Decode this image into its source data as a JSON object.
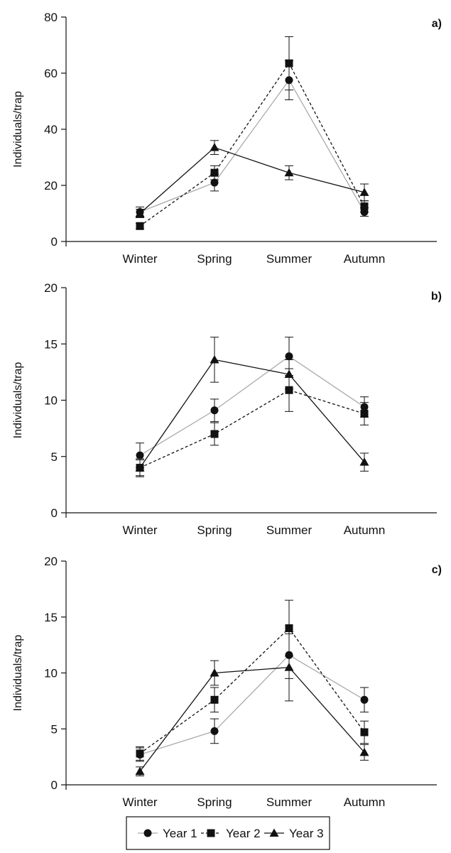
{
  "chart_data": [
    {
      "type": "line",
      "panel_label": "a)",
      "ylabel": "Individuals/trap",
      "categories": [
        "Winter",
        "Spring",
        "Summer",
        "Autumn"
      ],
      "ylim": [
        0,
        80
      ],
      "yticks": [
        0,
        20,
        40,
        60,
        80
      ],
      "series": [
        {
          "name": "Year 1",
          "marker": "circle",
          "line": "solid",
          "color": "#aaaaaa",
          "values": [
            10.5,
            21,
            57.5,
            10.5
          ],
          "errors": [
            1.8,
            3.0,
            7.0,
            1.5
          ]
        },
        {
          "name": "Year 2",
          "marker": "square",
          "line": "dashed",
          "color": "#111111",
          "values": [
            5.5,
            24.5,
            63.5,
            12.5
          ],
          "errors": [
            1.0,
            2.5,
            9.5,
            2.0
          ]
        },
        {
          "name": "Year 3",
          "marker": "triangle",
          "line": "solid",
          "color": "#111111",
          "values": [
            10,
            33.5,
            24.5,
            17.5
          ],
          "errors": [
            1.5,
            2.5,
            2.5,
            3.0
          ]
        }
      ]
    },
    {
      "type": "line",
      "panel_label": "b)",
      "ylabel": "Individuals/trap",
      "categories": [
        "Winter",
        "Spring",
        "Summer",
        "Autumn"
      ],
      "ylim": [
        0,
        20
      ],
      "yticks": [
        0,
        5,
        10,
        15,
        20
      ],
      "series": [
        {
          "name": "Year 1",
          "marker": "circle",
          "line": "solid",
          "color": "#aaaaaa",
          "values": [
            5.1,
            9.1,
            13.9,
            9.4
          ],
          "errors": [
            1.1,
            1.0,
            1.7,
            0.9
          ]
        },
        {
          "name": "Year 2",
          "marker": "square",
          "line": "dashed",
          "color": "#111111",
          "values": [
            4.0,
            7.0,
            10.9,
            8.8
          ],
          "errors": [
            0.7,
            1.0,
            1.9,
            1.0
          ]
        },
        {
          "name": "Year 3",
          "marker": "triangle",
          "line": "solid",
          "color": "#111111",
          "values": [
            4.0,
            13.6,
            12.3,
            4.5
          ],
          "errors": [
            0.8,
            2.0,
            1.3,
            0.8
          ]
        }
      ]
    },
    {
      "type": "line",
      "panel_label": "c)",
      "ylabel": "Individuals/trap",
      "categories": [
        "Winter",
        "Spring",
        "Summer",
        "Autumn"
      ],
      "ylim": [
        0,
        20
      ],
      "yticks": [
        0,
        5,
        10,
        15,
        20
      ],
      "series": [
        {
          "name": "Year 1",
          "marker": "circle",
          "line": "solid",
          "color": "#aaaaaa",
          "values": [
            2.7,
            4.8,
            11.6,
            7.6
          ],
          "errors": [
            0.6,
            1.1,
            2.1,
            1.1
          ]
        },
        {
          "name": "Year 2",
          "marker": "square",
          "line": "dashed",
          "color": "#111111",
          "values": [
            2.8,
            7.6,
            14.0,
            4.7
          ],
          "errors": [
            0.6,
            1.1,
            2.5,
            1.0
          ]
        },
        {
          "name": "Year 3",
          "marker": "triangle",
          "line": "solid",
          "color": "#111111",
          "values": [
            1.2,
            10.0,
            10.5,
            2.9
          ],
          "errors": [
            0.4,
            1.1,
            3.0,
            0.7
          ]
        }
      ]
    }
  ],
  "legend": {
    "position": "bottom-center",
    "items": [
      {
        "label": "Year 1",
        "marker": "circle",
        "line": "solid",
        "color": "#aaaaaa"
      },
      {
        "label": "Year 2",
        "marker": "square",
        "line": "dashed",
        "color": "#111111"
      },
      {
        "label": "Year 3",
        "marker": "triangle",
        "line": "solid",
        "color": "#111111"
      }
    ]
  }
}
